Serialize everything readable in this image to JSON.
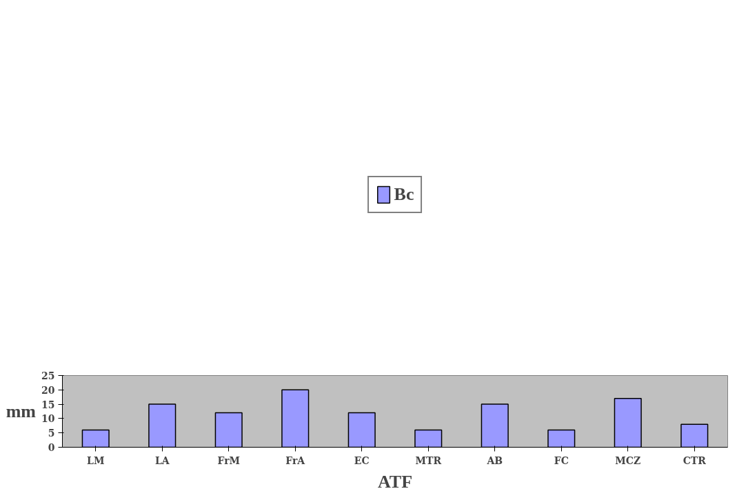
{
  "chart_data": {
    "type": "bar",
    "xlabel": "ATF",
    "ylabel": "mm",
    "categories": [
      "LM",
      "LA",
      "FrM",
      "FrA",
      "EC",
      "MTR",
      "AB",
      "FC",
      "MCZ",
      "CTR"
    ],
    "series": [
      {
        "name": "Bc",
        "color": "#9999ff",
        "values": [
          6,
          15,
          12,
          20,
          12,
          6,
          15,
          6,
          17,
          8
        ]
      }
    ],
    "ylim": [
      0,
      25
    ],
    "yticks": [
      0,
      5,
      10,
      15,
      20,
      25
    ],
    "grid": false,
    "legend": "top"
  }
}
